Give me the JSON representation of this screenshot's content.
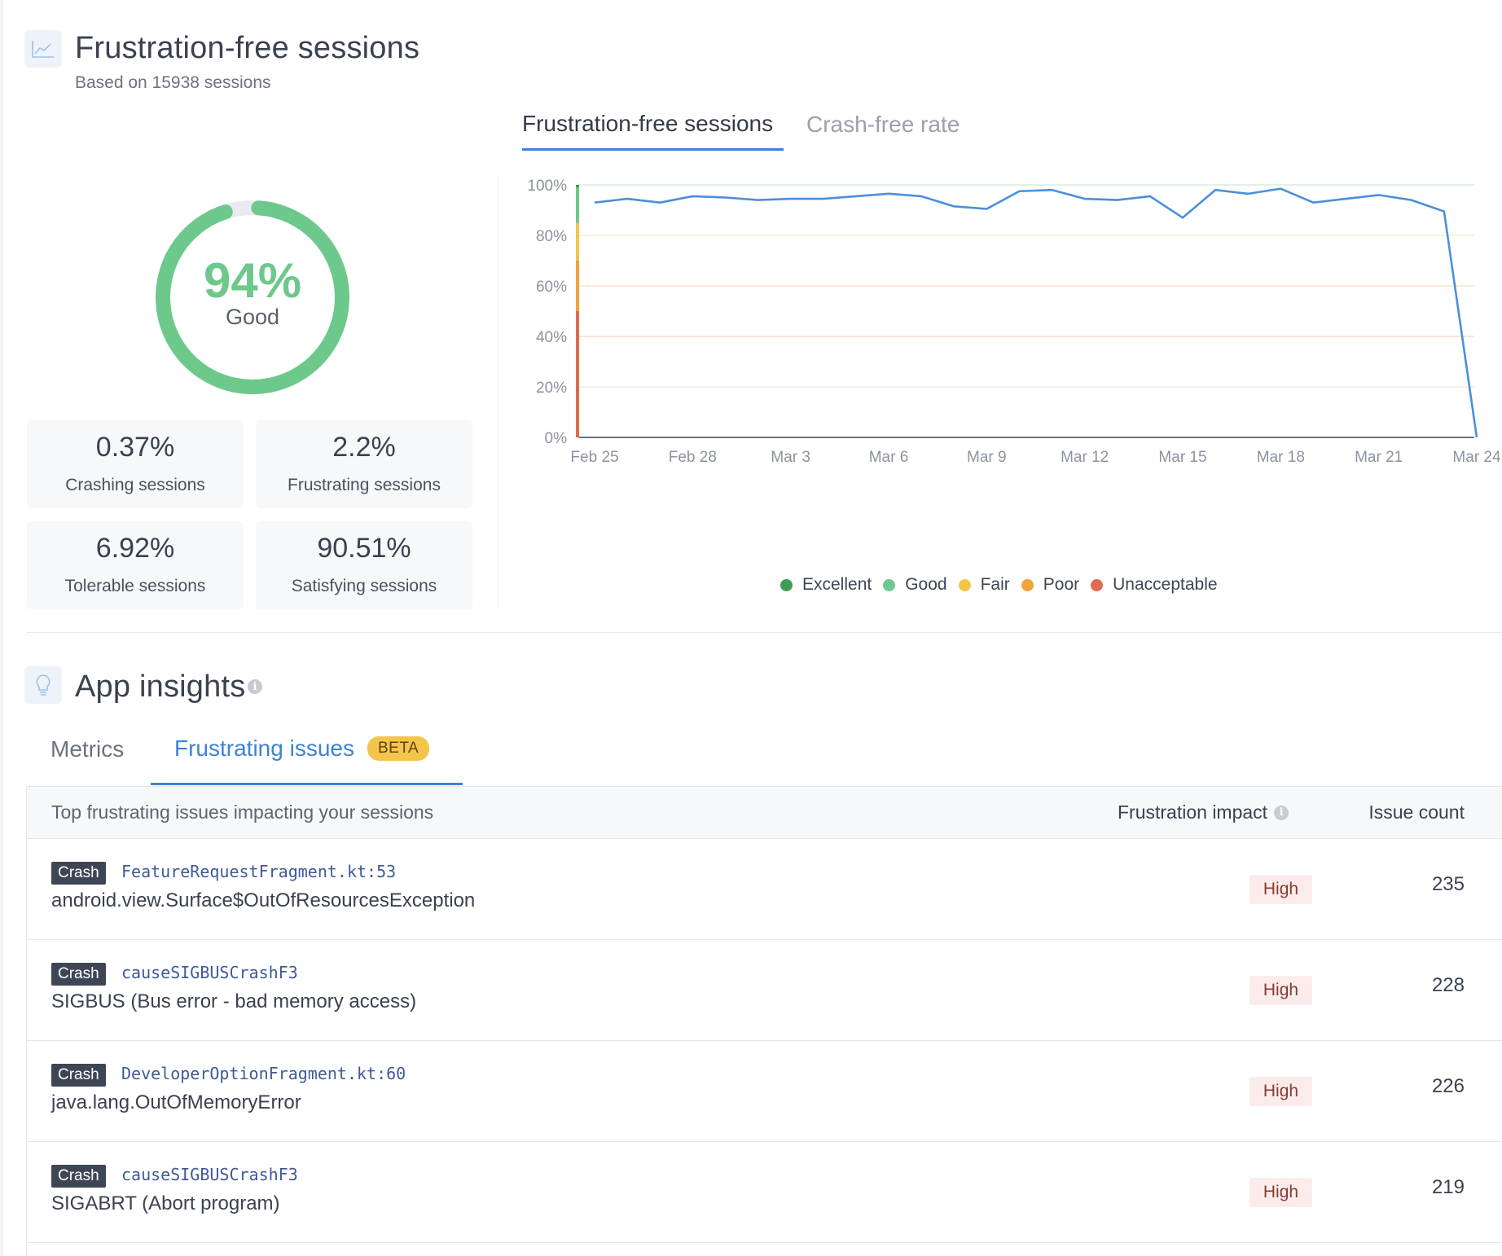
{
  "ffs": {
    "title": "Frustration-free sessions",
    "subtitle": "Based on 15938 sessions",
    "score": {
      "value": "94%",
      "label": "Good",
      "fraction": 0.94
    },
    "stats": [
      {
        "value": "0.37%",
        "label": "Crashing sessions"
      },
      {
        "value": "2.2%",
        "label": "Frustrating sessions"
      },
      {
        "value": "6.92%",
        "label": "Tolerable sessions"
      },
      {
        "value": "90.51%",
        "label": "Satisfying sessions"
      }
    ],
    "tabs": [
      {
        "label": "Frustration-free sessions",
        "active": true
      },
      {
        "label": "Crash-free rate",
        "active": false
      }
    ]
  },
  "chart_data": {
    "type": "line",
    "x_labels": [
      "Feb 25",
      "Feb 28",
      "Mar 3",
      "Mar 6",
      "Mar 9",
      "Mar 12",
      "Mar 15",
      "Mar 18",
      "Mar 21",
      "Mar 24"
    ],
    "y_ticks": [
      "100%",
      "80%",
      "60%",
      "40%",
      "20%",
      "0%"
    ],
    "ylim": [
      0,
      100
    ],
    "series": [
      {
        "color": "#4a90d9",
        "x": [
          "Feb 25",
          "Feb 26",
          "Feb 27",
          "Feb 28",
          "Mar 1",
          "Mar 2",
          "Mar 3",
          "Mar 4",
          "Mar 5",
          "Mar 6",
          "Mar 7",
          "Mar 8",
          "Mar 9",
          "Mar 10",
          "Mar 11",
          "Mar 12",
          "Mar 13",
          "Mar 14",
          "Mar 15",
          "Mar 16",
          "Mar 17",
          "Mar 18",
          "Mar 19",
          "Mar 20",
          "Mar 21",
          "Mar 22",
          "Mar 23",
          "Mar 24"
        ],
        "values": [
          93,
          94.5,
          93,
          95.5,
          95,
          94,
          94.5,
          94.5,
          95.5,
          96.5,
          95.5,
          91.5,
          90.5,
          97.5,
          98,
          94.5,
          94,
          95.5,
          87,
          98,
          96.5,
          98.5,
          93,
          94.5,
          96,
          94,
          89.5,
          0
        ]
      }
    ],
    "bands": [
      {
        "name": "Excellent",
        "color": "#3f9c52",
        "from": 99,
        "to": 100
      },
      {
        "name": "Good",
        "color": "#6cc98b",
        "from": 85,
        "to": 99
      },
      {
        "name": "Fair",
        "color": "#f4c54a",
        "from": 70,
        "to": 85
      },
      {
        "name": "Poor",
        "color": "#f0a43a",
        "from": 50,
        "to": 70
      },
      {
        "name": "Unacceptable",
        "color": "#e06c4f",
        "from": 0,
        "to": 50
      }
    ],
    "legend": [
      {
        "name": "Excellent",
        "color": "#3f9c52"
      },
      {
        "name": "Good",
        "color": "#6cc98b"
      },
      {
        "name": "Fair",
        "color": "#f4c54a"
      },
      {
        "name": "Poor",
        "color": "#f0a43a"
      },
      {
        "name": "Unacceptable",
        "color": "#e06c4f"
      }
    ],
    "legend_position": "bottom"
  },
  "insights": {
    "title": "App insights",
    "tabs": [
      {
        "label": "Metrics",
        "active": false
      },
      {
        "label": "Frustrating issues",
        "active": true,
        "badge": "BETA"
      }
    ],
    "table": {
      "heading": "Top frustrating issues impacting your sessions",
      "col_impact": "Frustration impact",
      "col_count": "Issue count",
      "rows": [
        {
          "tag": "Crash",
          "location": "FeatureRequestFragment.kt:53",
          "error": "android.view.Surface$OutOfResourcesException",
          "impact": "High",
          "count": "235"
        },
        {
          "tag": "Crash",
          "location": "causeSIGBUSCrashF3",
          "error": "SIGBUS (Bus error - bad memory access)",
          "impact": "High",
          "count": "228"
        },
        {
          "tag": "Crash",
          "location": "DeveloperOptionFragment.kt:60",
          "error": "java.lang.OutOfMemoryError",
          "impact": "High",
          "count": "226"
        },
        {
          "tag": "Crash",
          "location": "causeSIGBUSCrashF3",
          "error": "SIGABRT (Abort program)",
          "impact": "High",
          "count": "219"
        }
      ]
    }
  },
  "colors": {
    "accent": "#3d82d8",
    "good": "#6cc98b",
    "line": "#4a90d9"
  }
}
